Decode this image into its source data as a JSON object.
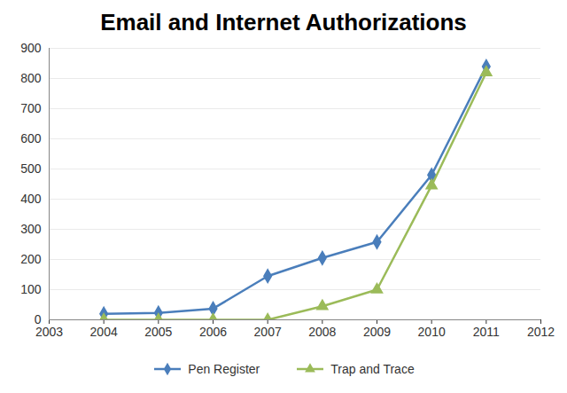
{
  "chart_data": {
    "type": "line",
    "title": "Email and Internet Authorizations",
    "x": [
      2004,
      2005,
      2006,
      2007,
      2008,
      2009,
      2010,
      2011
    ],
    "series": [
      {
        "name": "Pen Register",
        "color": "#4a7ebb",
        "marker": "diamond",
        "values": [
          20,
          23,
          37,
          145,
          205,
          258,
          480,
          840
        ]
      },
      {
        "name": "Trap and Trace",
        "color": "#9bbb59",
        "marker": "triangle",
        "values": [
          0,
          0,
          0,
          0,
          45,
          100,
          445,
          820
        ]
      }
    ],
    "xlim": [
      2003,
      2012
    ],
    "xticks": [
      2003,
      2004,
      2005,
      2006,
      2007,
      2008,
      2009,
      2010,
      2011,
      2012
    ],
    "ylim": [
      0,
      900
    ],
    "yticks": [
      0,
      100,
      200,
      300,
      400,
      500,
      600,
      700,
      800,
      900
    ],
    "grid": true,
    "legend": "bottom"
  }
}
